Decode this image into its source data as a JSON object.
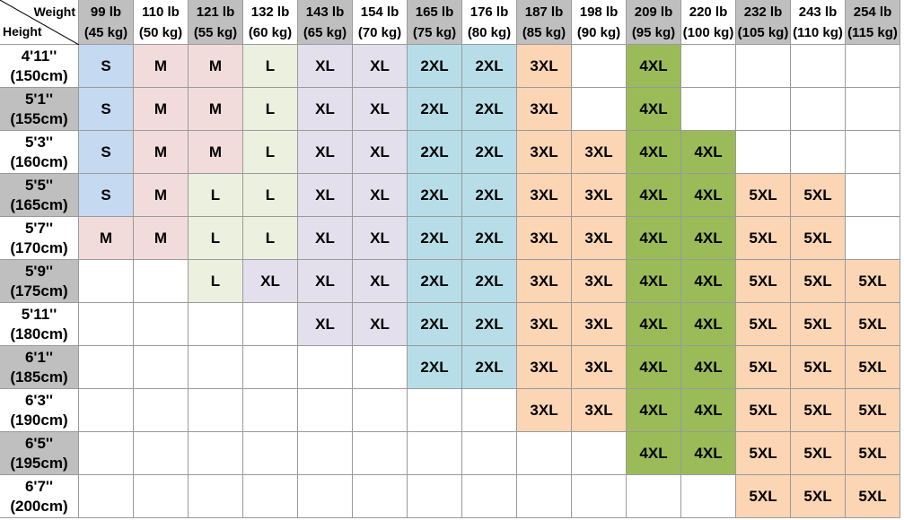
{
  "corner": {
    "weight": "Weight",
    "height": "Height"
  },
  "weights": [
    {
      "lb": "99 lb",
      "kg": "(45 kg)"
    },
    {
      "lb": "110 lb",
      "kg": "(50 kg)"
    },
    {
      "lb": "121 lb",
      "kg": "(55 kg)"
    },
    {
      "lb": "132 lb",
      "kg": "(60 kg)"
    },
    {
      "lb": "143 lb",
      "kg": "(65 kg)"
    },
    {
      "lb": "154 lb",
      "kg": "(70 kg)"
    },
    {
      "lb": "165 lb",
      "kg": "(75 kg)"
    },
    {
      "lb": "176 lb",
      "kg": "(80 kg)"
    },
    {
      "lb": "187 lb",
      "kg": "(85 kg)"
    },
    {
      "lb": "198 lb",
      "kg": "(90 kg)"
    },
    {
      "lb": "209 lb",
      "kg": "(95 kg)"
    },
    {
      "lb": "220 lb",
      "kg": "(100 kg)"
    },
    {
      "lb": "232 lb",
      "kg": "(105 kg)"
    },
    {
      "lb": "243 lb",
      "kg": "(110 kg)"
    },
    {
      "lb": "254 lb",
      "kg": "(115 kg)"
    }
  ],
  "heights": [
    {
      "ft": "4'11''",
      "cm": "(150cm)"
    },
    {
      "ft": "5'1''",
      "cm": "(155cm)"
    },
    {
      "ft": "5'3''",
      "cm": "(160cm)"
    },
    {
      "ft": "5'5''",
      "cm": "(165cm)"
    },
    {
      "ft": "5'7''",
      "cm": "(170cm)"
    },
    {
      "ft": "5'9''",
      "cm": "(175cm)"
    },
    {
      "ft": "5'11''",
      "cm": "(180cm)"
    },
    {
      "ft": "6'1''",
      "cm": "(185cm)"
    },
    {
      "ft": "6'3''",
      "cm": "(190cm)"
    },
    {
      "ft": "6'5''",
      "cm": "(195cm)"
    },
    {
      "ft": "6'7''",
      "cm": "(200cm)"
    }
  ],
  "rows": [
    [
      "S",
      "M",
      "M",
      "L",
      "XL",
      "XL",
      "2XL",
      "2XL",
      "3XL",
      null,
      "4XL",
      null,
      null,
      null,
      null
    ],
    [
      "S",
      "M",
      "M",
      "L",
      "XL",
      "XL",
      "2XL",
      "2XL",
      "3XL",
      null,
      "4XL",
      null,
      null,
      null,
      null
    ],
    [
      "S",
      "M",
      "M",
      "L",
      "XL",
      "XL",
      "2XL",
      "2XL",
      "3XL",
      "3XL",
      "4XL",
      "4XL",
      null,
      null,
      null
    ],
    [
      "S",
      "M",
      "L",
      "L",
      "XL",
      "XL",
      "2XL",
      "2XL",
      "3XL",
      "3XL",
      "4XL",
      "4XL",
      "5XL",
      "5XL",
      null
    ],
    [
      "M",
      "M",
      "L",
      "L",
      "XL",
      "XL",
      "2XL",
      "2XL",
      "3XL",
      "3XL",
      "4XL",
      "4XL",
      "5XL",
      "5XL",
      null
    ],
    [
      null,
      null,
      "L",
      "XL",
      "XL",
      "XL",
      "2XL",
      "2XL",
      "3XL",
      "3XL",
      "4XL",
      "4XL",
      "5XL",
      "5XL",
      "5XL"
    ],
    [
      null,
      null,
      null,
      null,
      "XL",
      "XL",
      "2XL",
      "2XL",
      "3XL",
      "3XL",
      "4XL",
      "4XL",
      "5XL",
      "5XL",
      "5XL"
    ],
    [
      null,
      null,
      null,
      null,
      null,
      null,
      "2XL",
      "2XL",
      "3XL",
      "3XL",
      "4XL",
      "4XL",
      "5XL",
      "5XL",
      "5XL"
    ],
    [
      null,
      null,
      null,
      null,
      null,
      null,
      null,
      null,
      "3XL",
      "3XL",
      "4XL",
      "4XL",
      "5XL",
      "5XL",
      "5XL"
    ],
    [
      null,
      null,
      null,
      null,
      null,
      null,
      null,
      null,
      null,
      null,
      "4XL",
      "4XL",
      "5XL",
      "5XL",
      "5XL"
    ],
    [
      null,
      null,
      null,
      null,
      null,
      null,
      null,
      null,
      null,
      null,
      null,
      null,
      "5XL",
      "5XL",
      "5XL"
    ]
  ],
  "size_colors": {
    "S": "#c5d9f1",
    "M": "#f2dcdb",
    "L": "#ebf1de",
    "XL": "#e4dfec",
    "2XL": "#b7dee8",
    "3XL": "#fcd5b4",
    "4XL": "#9bbb59",
    "5XL": "#fcd5b4"
  },
  "header_gray": "#bfbfbf"
}
